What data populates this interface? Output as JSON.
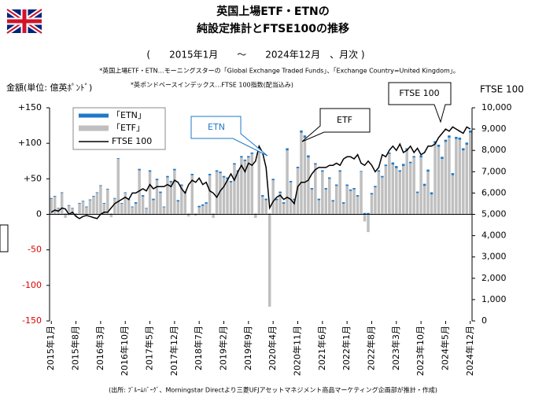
{
  "chart_data": {
    "type": "bar",
    "title": [
      "英国上場ETF・ETNの",
      "純設定推計とFTSE100の推移"
    ],
    "subtitle": "(　　2015年1月　　～　　2024年12月　、月次 )",
    "notes": [
      "*英国上場ETF・ETN…モーニングスターの「Global Exchange Traded Funds」、「Exchange Country=United Kingdom」。",
      "*英ポンドベースインデックス…FTSE 100指数(配当込み)"
    ],
    "y_label": "金額(単位: 億英ﾎﾟﾝﾄﾞ)",
    "y2_label": "FTSE 100",
    "annotations": [
      "ETN",
      "ETF",
      "FTSE 100"
    ],
    "source": "(出所: ﾌﾞﾙｰﾑﾊﾞｰｸﾞ、Morningstar Directより三菱UFJアセットマネジメント商品マーケティング企画部が推計・作成)",
    "categories": [
      "2015年1月",
      null,
      null,
      null,
      null,
      null,
      null,
      "2015年8月",
      null,
      null,
      null,
      null,
      null,
      null,
      "2016年3月",
      null,
      null,
      null,
      null,
      null,
      null,
      "2016年10月",
      null,
      null,
      null,
      null,
      null,
      null,
      "2017年5月",
      null,
      null,
      null,
      null,
      null,
      null,
      "2017年12月",
      null,
      null,
      null,
      null,
      null,
      null,
      "2018年7月",
      null,
      null,
      null,
      null,
      null,
      null,
      "2019年2月",
      null,
      null,
      null,
      null,
      null,
      null,
      "2019年9月",
      null,
      null,
      null,
      null,
      null,
      null,
      "2020年4月",
      null,
      null,
      null,
      null,
      null,
      null,
      "2020年11月",
      null,
      null,
      null,
      null,
      null,
      null,
      "2021年6月",
      null,
      null,
      null,
      null,
      null,
      null,
      "2022年1月",
      null,
      null,
      null,
      null,
      null,
      null,
      "2022年8月",
      null,
      null,
      null,
      null,
      null,
      null,
      "2023年3月",
      null,
      null,
      null,
      null,
      null,
      null,
      "2023年10月",
      null,
      null,
      null,
      null,
      null,
      null,
      "2024年5月",
      null,
      null,
      null,
      null,
      null,
      null,
      "2024年12月"
    ],
    "series": [
      {
        "name": "「ETN」",
        "color": "#1f78c8",
        "values": [
          1,
          1,
          1,
          1,
          1,
          1,
          1,
          1,
          1,
          1,
          1,
          1,
          1,
          1,
          1,
          1,
          1,
          1,
          1,
          1,
          1,
          1,
          1,
          1,
          2,
          2,
          2,
          1,
          2,
          2,
          2,
          2,
          1,
          2,
          2,
          2,
          2,
          2,
          2,
          1,
          2,
          1,
          2,
          2,
          2,
          2,
          1,
          2,
          2,
          2,
          2,
          2,
          2,
          2,
          2,
          2,
          2,
          2,
          1,
          2,
          2,
          2,
          1,
          2,
          2,
          2,
          2,
          3,
          2,
          2,
          2,
          3,
          3,
          3,
          2,
          2,
          2,
          2,
          2,
          2,
          2,
          2,
          2,
          2,
          2,
          2,
          2,
          2,
          1,
          2,
          2,
          2,
          2,
          2,
          2,
          2,
          2,
          3,
          3,
          2,
          3,
          3,
          2,
          2,
          2,
          3,
          3,
          3,
          3,
          3,
          3,
          3,
          3,
          3,
          3,
          3,
          3,
          3,
          3,
          3
        ]
      },
      {
        "name": "「ETF」",
        "color": "#bfbfbf",
        "values": [
          22,
          25,
          8,
          30,
          -5,
          12,
          8,
          -3,
          15,
          18,
          10,
          20,
          25,
          30,
          40,
          15,
          35,
          -4,
          22,
          78,
          15,
          30,
          20,
          10,
          15,
          62,
          25,
          8,
          60,
          20,
          48,
          30,
          10,
          52,
          45,
          62,
          18,
          40,
          30,
          -3,
          55,
          -2,
          10,
          12,
          15,
          55,
          -5,
          60,
          58,
          52,
          50,
          45,
          70,
          60,
          80,
          75,
          80,
          85,
          -5,
          88,
          25,
          20,
          -130,
          48,
          20,
          30,
          15,
          90,
          45,
          20,
          65,
          115,
          108,
          80,
          35,
          70,
          20,
          60,
          35,
          50,
          18,
          40,
          60,
          15,
          40,
          33,
          35,
          25,
          60,
          -10,
          -25,
          28,
          38,
          60,
          52,
          68,
          85,
          70,
          65,
          60,
          68,
          90,
          72,
          80,
          30,
          80,
          40,
          60,
          28,
          100,
          95,
          78,
          102,
          108,
          55,
          106,
          105,
          90,
          98,
          115
        ]
      },
      {
        "name": "FTSE 100",
        "color": "#000000",
        "axis": "y2",
        "values": [
          5100,
          5200,
          5150,
          5300,
          5250,
          5000,
          5100,
          4900,
          4800,
          4900,
          4950,
          4900,
          4850,
          4800,
          5000,
          5100,
          5100,
          5300,
          5500,
          5600,
          5700,
          5800,
          5700,
          6000,
          6000,
          6100,
          6200,
          6100,
          6400,
          6200,
          6300,
          6300,
          6300,
          6400,
          6300,
          6600,
          6500,
          6200,
          6000,
          6400,
          6600,
          6500,
          6700,
          6400,
          6500,
          6100,
          6000,
          5800,
          6100,
          6300,
          6600,
          6900,
          6600,
          7000,
          7300,
          7000,
          7400,
          7300,
          7500,
          8200,
          7900,
          7200,
          5300,
          5600,
          5800,
          5900,
          5700,
          5800,
          5700,
          5500,
          6300,
          6500,
          6500,
          6600,
          6900,
          7100,
          7200,
          7200,
          7200,
          7300,
          7300,
          7400,
          7300,
          7600,
          7700,
          7700,
          7600,
          7800,
          7400,
          7300,
          7500,
          7300,
          7000,
          7200,
          7800,
          7700,
          8000,
          8200,
          8000,
          8300,
          7900,
          8000,
          8200,
          7900,
          8100,
          7800,
          7900,
          8200,
          8200,
          8300,
          8600,
          8800,
          9000,
          8900,
          9100,
          9000,
          8900,
          8800,
          9100,
          9000
        ]
      }
    ],
    "ylim": [
      -150,
      150
    ],
    "yticks": [
      {
        "value": 150,
        "label": "+150"
      },
      {
        "value": 100,
        "label": "+100"
      },
      {
        "value": 50,
        "label": "+50"
      },
      0,
      -50,
      -100,
      -150
    ],
    "y2lim": [
      0,
      10000
    ],
    "y2ticks": [
      0,
      {
        "value": 1000,
        "label": "1,000"
      },
      {
        "value": 2000,
        "label": "2,000"
      },
      {
        "value": 3000,
        "label": "3,000"
      },
      {
        "value": 4000,
        "label": "4,000"
      },
      {
        "value": 5000,
        "label": "5,000"
      },
      {
        "value": 6000,
        "label": "6,000"
      },
      {
        "value": 7000,
        "label": "7,000"
      },
      {
        "value": 8000,
        "label": "8,000"
      },
      {
        "value": 9000,
        "label": "9,000"
      },
      {
        "value": 10000,
        "label": "10,000"
      }
    ],
    "negative_tick_color": "#e00000",
    "stacked": true
  }
}
